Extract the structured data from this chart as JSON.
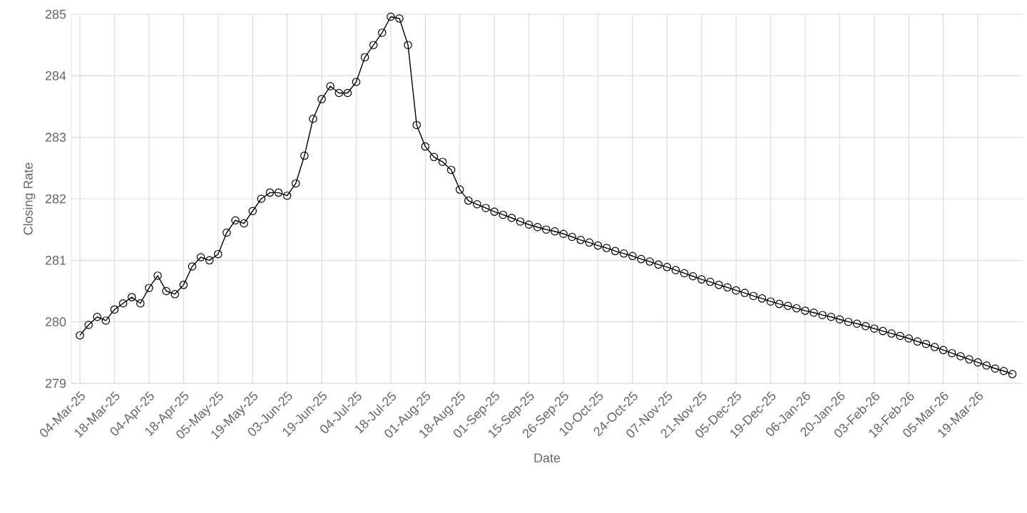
{
  "chart_data": {
    "type": "line",
    "xlabel": "Date",
    "ylabel": "Closing Rate",
    "grid": true,
    "marker": "circle",
    "line_style": "solid",
    "ylim": [
      279,
      285
    ],
    "yticks": [
      279,
      280,
      281,
      282,
      283,
      284,
      285
    ],
    "categories": [
      "04-Mar-25",
      null,
      null,
      null,
      "18-Mar-25",
      null,
      null,
      null,
      "04-Apr-25",
      null,
      null,
      null,
      "18-Apr-25",
      null,
      null,
      null,
      "05-May-25",
      null,
      null,
      null,
      "19-May-25",
      null,
      null,
      null,
      "03-Jun-25",
      null,
      null,
      null,
      "19-Jun-25",
      null,
      null,
      null,
      "04-Jul-25",
      null,
      null,
      null,
      "18-Jul-25",
      null,
      null,
      null,
      "01-Aug-25",
      null,
      null,
      null,
      "18-Aug-25",
      null,
      null,
      null,
      "01-Sep-25",
      null,
      null,
      null,
      "15-Sep-25",
      null,
      null,
      null,
      "26-Sep-25",
      null,
      null,
      null,
      "10-Oct-25",
      null,
      null,
      null,
      "24-Oct-25",
      null,
      null,
      null,
      "07-Nov-25",
      null,
      null,
      null,
      "21-Nov-25",
      null,
      null,
      null,
      "05-Dec-25",
      null,
      null,
      null,
      "19-Dec-25",
      null,
      null,
      null,
      "06-Jan-26",
      null,
      null,
      null,
      "20-Jan-26",
      null,
      null,
      null,
      "03-Feb-26",
      null,
      null,
      null,
      "18-Feb-26",
      null,
      null,
      null,
      "05-Mar-26",
      null,
      null,
      null,
      "19-Mar-26",
      null,
      null,
      null,
      null
    ],
    "series": [
      {
        "color": "#000000",
        "values": [
          279.78,
          279.95,
          280.08,
          280.02,
          280.2,
          280.3,
          280.4,
          280.3,
          280.55,
          280.75,
          280.5,
          280.45,
          280.6,
          280.9,
          281.05,
          281.0,
          281.1,
          281.45,
          281.65,
          281.6,
          281.8,
          282.0,
          282.1,
          282.1,
          282.05,
          282.25,
          282.7,
          283.3,
          283.62,
          283.83,
          283.72,
          283.72,
          283.9,
          284.3,
          284.5,
          284.7,
          284.96,
          284.93,
          284.5,
          283.2,
          282.85,
          282.68,
          282.6,
          282.47,
          282.15,
          281.97,
          281.91,
          281.85,
          281.79,
          281.74,
          281.69,
          281.63,
          281.58,
          281.54,
          281.5,
          281.47,
          281.43,
          281.38,
          281.33,
          281.29,
          281.24,
          281.2,
          281.15,
          281.11,
          281.07,
          281.02,
          280.98,
          280.93,
          280.89,
          280.84,
          280.79,
          280.74,
          280.69,
          280.65,
          280.6,
          280.56,
          280.51,
          280.47,
          280.42,
          280.38,
          280.33,
          280.29,
          280.26,
          280.22,
          280.18,
          280.15,
          280.11,
          280.08,
          280.04,
          280.0,
          279.97,
          279.93,
          279.89,
          279.85,
          279.81,
          279.77,
          279.73,
          279.68,
          279.64,
          279.59,
          279.54,
          279.49,
          279.44,
          279.39,
          279.34,
          279.29,
          279.24,
          279.2,
          279.15
        ]
      }
    ]
  }
}
